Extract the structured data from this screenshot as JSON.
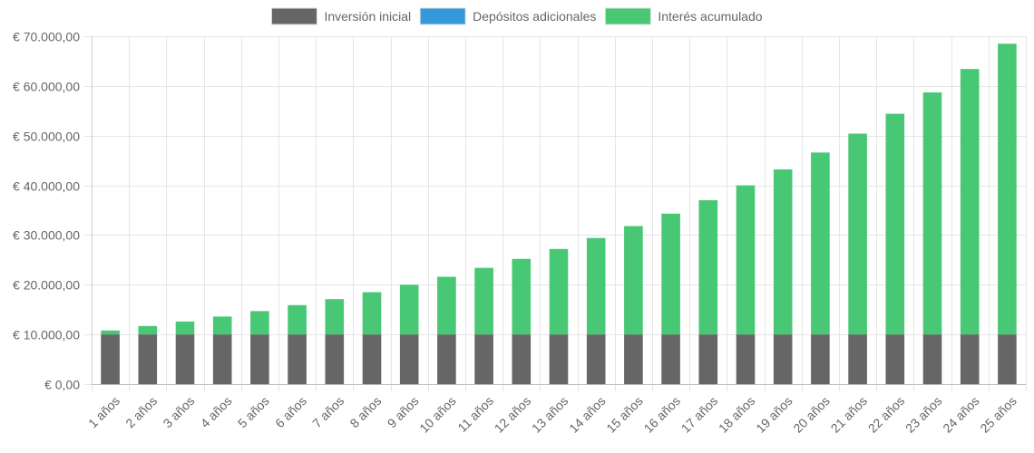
{
  "chart_data": {
    "type": "bar",
    "stacked": true,
    "categories": [
      "1 años",
      "2 años",
      "3 años",
      "4 años",
      "5 años",
      "6 años",
      "7 años",
      "8 años",
      "9 años",
      "10 años",
      "11 años",
      "12 años",
      "13 años",
      "14 años",
      "15 años",
      "16 años",
      "17 años",
      "18 años",
      "19 años",
      "20 años",
      "21 años",
      "22 años",
      "23 años",
      "24 años",
      "25 años"
    ],
    "series": [
      {
        "name": "Inversión inicial",
        "color": "#666666",
        "values": [
          10000,
          10000,
          10000,
          10000,
          10000,
          10000,
          10000,
          10000,
          10000,
          10000,
          10000,
          10000,
          10000,
          10000,
          10000,
          10000,
          10000,
          10000,
          10000,
          10000,
          10000,
          10000,
          10000,
          10000,
          10000
        ]
      },
      {
        "name": "Depósitos adicionales",
        "color": "#3498db",
        "values": [
          0,
          0,
          0,
          0,
          0,
          0,
          0,
          0,
          0,
          0,
          0,
          0,
          0,
          0,
          0,
          0,
          0,
          0,
          0,
          0,
          0,
          0,
          0,
          0,
          0
        ]
      },
      {
        "name": "Interés acumulado",
        "color": "#48c774",
        "values": [
          800,
          1700,
          2600,
          3600,
          4700,
          5900,
          7100,
          8500,
          10000,
          11600,
          13400,
          15200,
          17200,
          19400,
          21800,
          24300,
          27000,
          30000,
          33200,
          36600,
          40400,
          44400,
          48700,
          53400,
          58500
        ]
      }
    ],
    "ylim": [
      0,
      70000
    ],
    "yticks": [
      0,
      10000,
      20000,
      30000,
      40000,
      50000,
      60000,
      70000
    ],
    "ytick_labels": [
      "€ 0,00",
      "€ 10.000,00",
      "€ 20.000,00",
      "€ 30.000,00",
      "€ 40.000,00",
      "€ 50.000,00",
      "€ 60.000,00",
      "€ 70.000,00"
    ],
    "title": "",
    "xlabel": "",
    "ylabel": "",
    "legend_position": "top",
    "grid": true
  }
}
